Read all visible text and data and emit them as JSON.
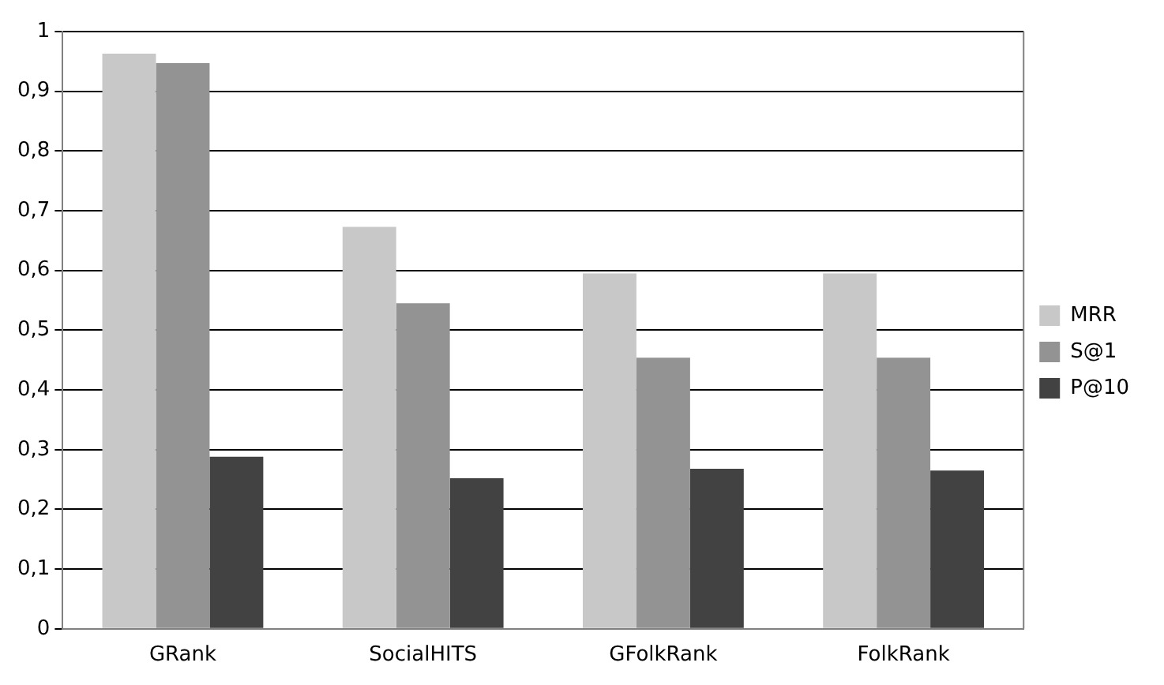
{
  "chart_data": {
    "type": "bar",
    "categories": [
      "GRank",
      "SocialHITS",
      "GFolkRank",
      "FolkRank"
    ],
    "series": [
      {
        "name": "MRR",
        "color": "#c8c8c8",
        "values": [
          0.963,
          0.673,
          0.595,
          0.595
        ]
      },
      {
        "name": "S@1",
        "color": "#939393",
        "values": [
          0.947,
          0.545,
          0.454,
          0.454
        ]
      },
      {
        "name": "P@10",
        "color": "#424242",
        "values": [
          0.288,
          0.252,
          0.268,
          0.265
        ]
      }
    ],
    "ylim": [
      0,
      1
    ],
    "yticks": [
      0,
      {
        "value": 0.1,
        "label": "0,1"
      },
      {
        "value": 0.2,
        "label": "0,2"
      },
      {
        "value": 0.3,
        "label": "0,3"
      },
      {
        "value": 0.4,
        "label": "0,4"
      },
      {
        "value": 0.5,
        "label": "0,5"
      },
      {
        "value": 0.6,
        "label": "0,6"
      },
      {
        "value": 0.7,
        "label": "0,7"
      },
      {
        "value": 0.8,
        "label": "0,8"
      },
      {
        "value": 0.9,
        "label": "0,9"
      },
      1
    ],
    "grid": "y",
    "legend": "right"
  }
}
